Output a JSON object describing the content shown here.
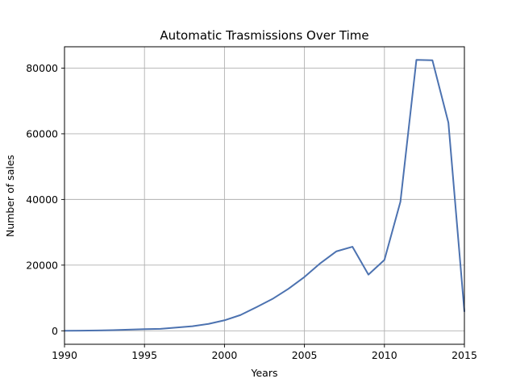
{
  "chart_data": {
    "type": "line",
    "title": "Automatic Trasmissions Over Time",
    "xlabel": "Years",
    "ylabel": "Number of sales",
    "xlim": [
      1990,
      2015
    ],
    "ylim": [
      -4100,
      86500
    ],
    "xticks": [
      1990,
      1995,
      2000,
      2005,
      2010,
      2015
    ],
    "xtick_labels": [
      "1990",
      "1995",
      "2000",
      "2005",
      "2010",
      "2015"
    ],
    "yticks": [
      0,
      20000,
      40000,
      60000,
      80000
    ],
    "ytick_labels": [
      "0",
      "20000",
      "40000",
      "60000",
      "80000"
    ],
    "grid": true,
    "x": [
      1990,
      1991,
      1992,
      1993,
      1994,
      1995,
      1996,
      1997,
      1998,
      1999,
      2000,
      2001,
      2002,
      2003,
      2004,
      2005,
      2006,
      2007,
      2008,
      2009,
      2010,
      2011,
      2012,
      2013,
      2014,
      2015
    ],
    "series": [
      {
        "color": "#4c72b0",
        "values": [
          0,
          50,
          100,
          200,
          350,
          500,
          600,
          1000,
          1400,
          2100,
          3200,
          4800,
          7200,
          9700,
          12800,
          16400,
          20600,
          24200,
          25600,
          17100,
          21600,
          39300,
          82500,
          82400,
          63400,
          5800
        ]
      }
    ]
  }
}
